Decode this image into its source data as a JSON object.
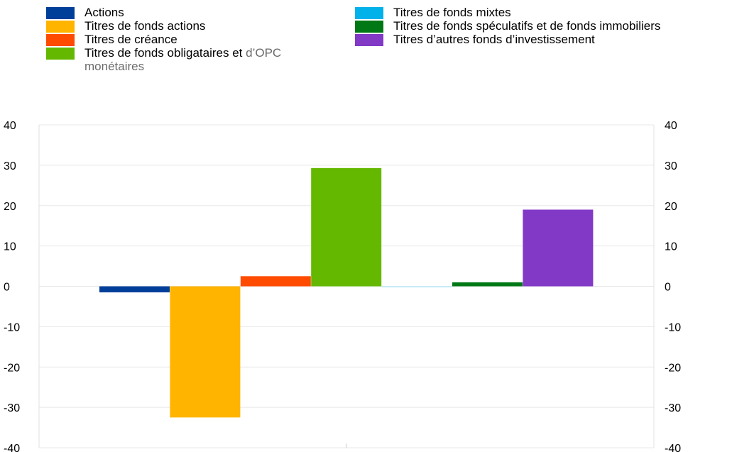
{
  "legend": {
    "left": [
      {
        "label": "Actions",
        "color": "#003f99"
      },
      {
        "label": "Titres de fonds actions",
        "color": "#ffb400"
      },
      {
        "label": "Titres de créance",
        "color": "#ff4b00"
      },
      {
        "label": "Titres de fonds obligataires et",
        "label_continued": "d’OPC",
        "label_line2": "monétaires",
        "color": "#65b800"
      }
    ],
    "right": [
      {
        "label": "Titres de fonds mixtes",
        "color": "#00b1ea"
      },
      {
        "label": "Titres de fonds spéculatifs et de fonds immobiliers",
        "color": "#007816"
      },
      {
        "label": "Titres d’autres fonds d’investissement",
        "color": "#8139c6"
      }
    ]
  },
  "chart_data": {
    "type": "bar",
    "title": "",
    "xlabel": "",
    "ylabel": "",
    "ylim": [
      -40,
      40
    ],
    "yticks": [
      40,
      30,
      20,
      10,
      0,
      -10,
      -20,
      -30,
      -40
    ],
    "ytick_labels": [
      "40",
      "30",
      "20",
      "10",
      "0",
      "-10",
      "-20",
      "-30",
      "-40"
    ],
    "grid": true,
    "legend_position": "top",
    "series": [
      {
        "name": "Actions",
        "value": -1.5,
        "color": "#003f99"
      },
      {
        "name": "Titres de fonds actions",
        "value": -32.5,
        "color": "#ffb400"
      },
      {
        "name": "Titres de créance",
        "value": 2.5,
        "color": "#ff4b00"
      },
      {
        "name": "Titres de fonds obligataires et d’OPC monétaires",
        "value": 29.3,
        "color": "#65b800"
      },
      {
        "name": "Titres de fonds mixtes",
        "value": -0.2,
        "color": "#00b1ea"
      },
      {
        "name": "Titres de fonds spéculatifs et de fonds immobiliers",
        "value": 1.0,
        "color": "#007816"
      },
      {
        "name": "Titres d’autres fonds d’investissement",
        "value": 19.0,
        "color": "#8139c6"
      }
    ]
  }
}
